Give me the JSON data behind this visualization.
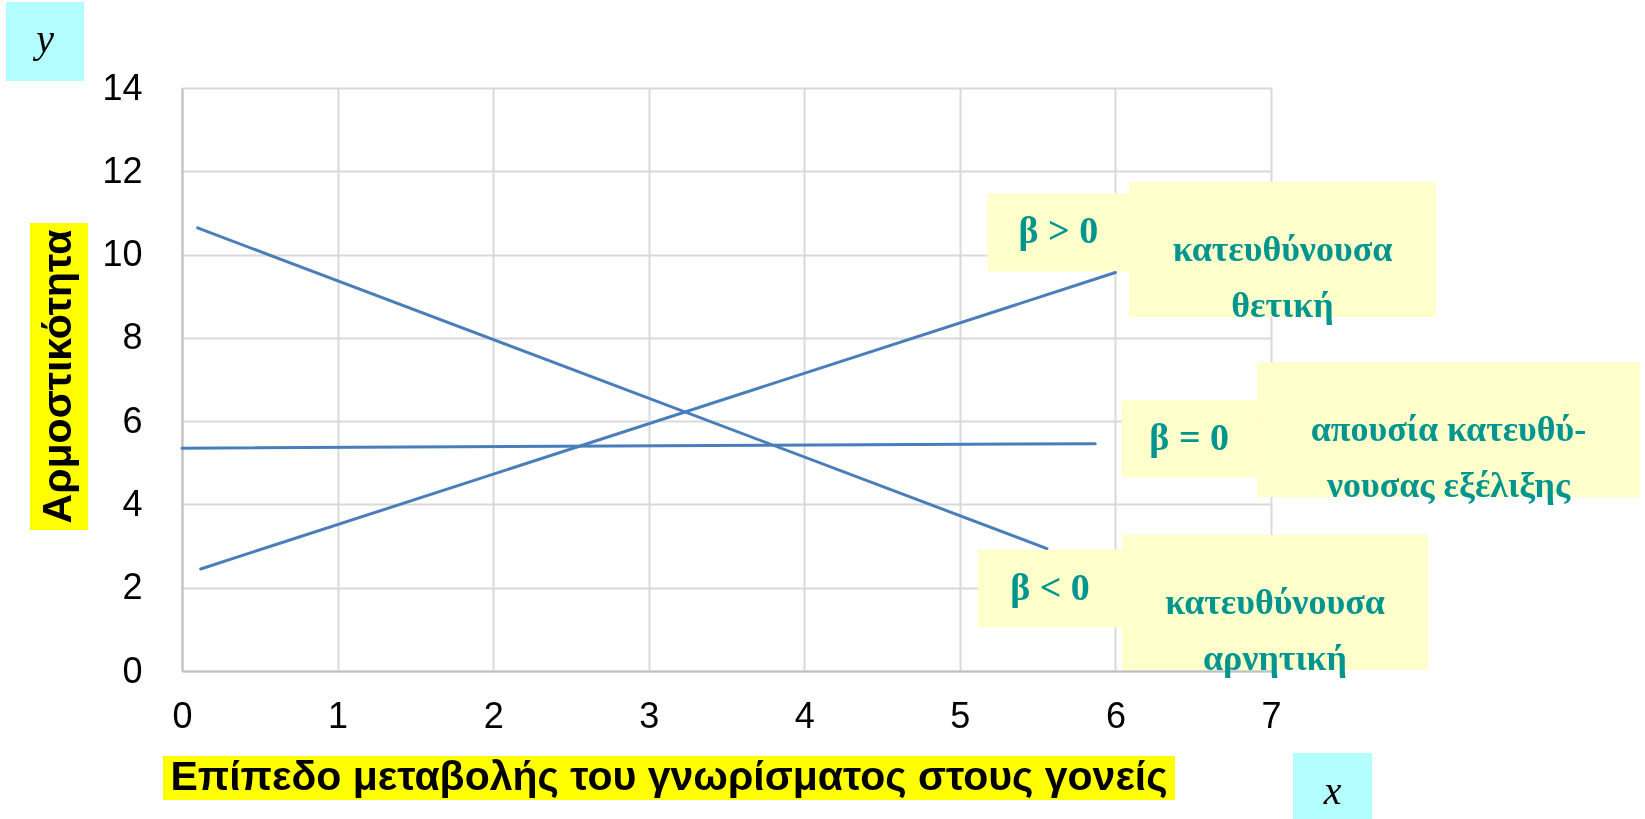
{
  "chart_data": {
    "type": "line",
    "xlabel": "Επίπεδο μεταβολής του γνωρίσματος στους γονείς",
    "ylabel": "Αρμοστικότητα",
    "xlim": [
      0,
      7
    ],
    "ylim": [
      0,
      14
    ],
    "xticks": [
      0,
      1,
      2,
      3,
      4,
      5,
      6,
      7
    ],
    "yticks": [
      0,
      2,
      4,
      6,
      8,
      10,
      12,
      14
    ],
    "grid": true,
    "marker": "none",
    "line_style": "solid",
    "series": [
      {
        "color": "#4a7ebb",
        "x": [
          0.1,
          5.56
        ],
        "values": [
          10.64,
          2.94
        ]
      },
      {
        "color": "#4a7ebb",
        "x": [
          0,
          5.87
        ],
        "values": [
          5.35,
          5.46
        ]
      },
      {
        "color": "#4a7ebb",
        "x": [
          0.12,
          6
        ],
        "values": [
          2.45,
          9.57
        ]
      }
    ],
    "annotations": [
      {
        "text": "β > 0",
        "x": 6,
        "y": 9.57
      },
      "κατευθύνουσα\nθετική",
      {
        "text": "β = 0",
        "x": 5.87,
        "y": 5.46
      },
      "απουσία κατευθύ-\nνουσας εξέλιξης",
      {
        "text": "β < 0",
        "x": 5.56,
        "y": 2.94
      },
      "κατευθύνουσα\nαρνητική",
      "y",
      "x"
    ]
  }
}
